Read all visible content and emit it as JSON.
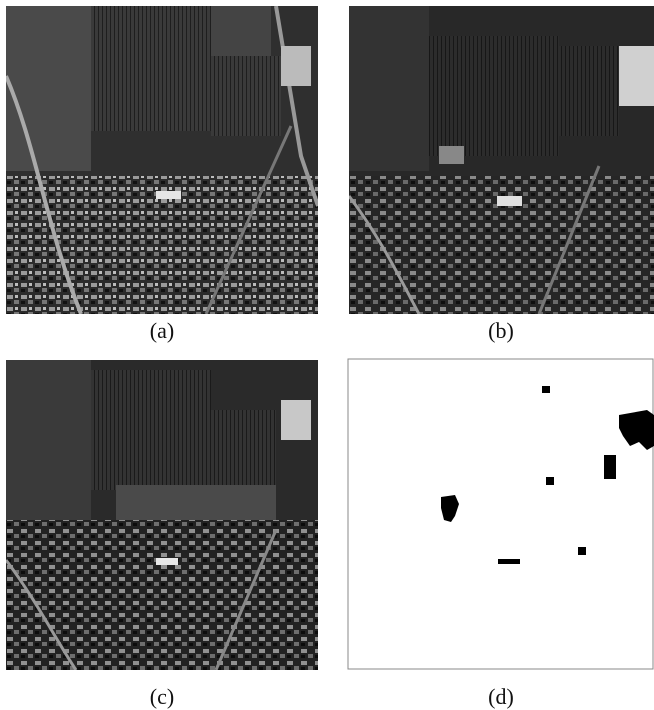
{
  "panels": [
    {
      "caption": "(a)",
      "kind": "satellite-image"
    },
    {
      "caption": "(b)",
      "kind": "satellite-image"
    },
    {
      "caption": "(c)",
      "kind": "satellite-image"
    },
    {
      "caption": "(d)",
      "kind": "change-map"
    }
  ],
  "colors": {
    "background": "#ffffff",
    "text": "#111111",
    "map_foreground": "#000000",
    "map_border": "#888888"
  }
}
